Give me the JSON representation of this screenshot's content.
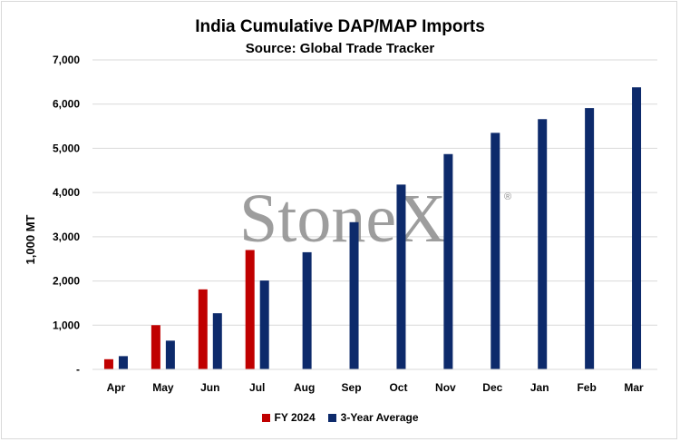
{
  "chart_data": {
    "type": "bar",
    "title": "India Cumulative DAP/MAP Imports",
    "subtitle": "Source: Global Trade Tracker",
    "ylabel": "1,000 MT",
    "xlabel": "",
    "ylim": [
      0,
      7000
    ],
    "y_ticks": [
      "-",
      "1,000",
      "2,000",
      "3,000",
      "4,000",
      "5,000",
      "6,000",
      "7,000"
    ],
    "categories": [
      "Apr",
      "May",
      "Jun",
      "Jul",
      "Aug",
      "Sep",
      "Oct",
      "Nov",
      "Dec",
      "Jan",
      "Feb",
      "Mar"
    ],
    "series": [
      {
        "name": "FY 2024",
        "color": "#c00000",
        "values": [
          230,
          1000,
          1810,
          2700,
          null,
          null,
          null,
          null,
          null,
          null,
          null,
          null
        ]
      },
      {
        "name": "3-Year Average",
        "color": "#0d2a6b",
        "values": [
          300,
          650,
          1270,
          2010,
          2650,
          3330,
          4180,
          4870,
          5350,
          5660,
          5910,
          6380
        ]
      }
    ],
    "grid": true,
    "legend_position": "bottom",
    "watermark": "StoneX"
  }
}
